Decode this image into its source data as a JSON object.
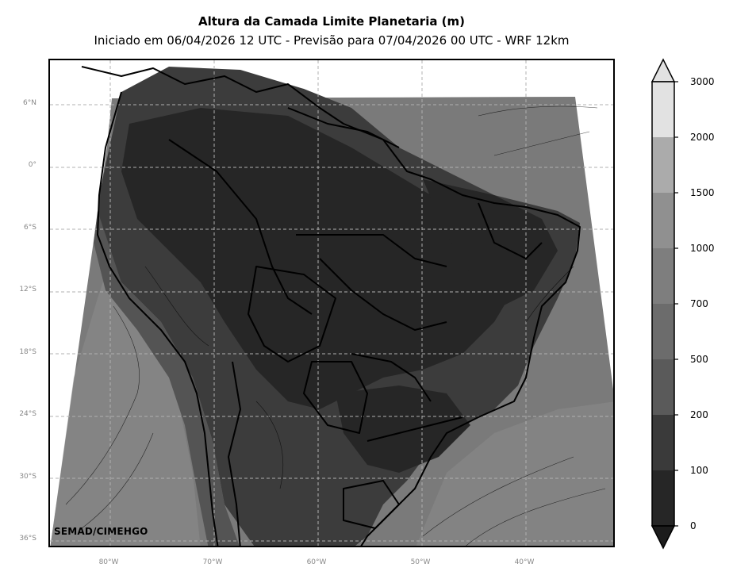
{
  "title": "Altura da Camada Limite Planetaria (m)",
  "subtitle": "Iniciado em 06/04/2026 12 UTC - Previsão para 07/04/2026 00 UTC - WRF 12km",
  "credit": "SEMAD/CIMEHGO",
  "lat_labels": [
    "6°N",
    "0°",
    "6°S",
    "12°S",
    "18°S",
    "24°S",
    "30°S",
    "36°S"
  ],
  "lon_labels": [
    "80°W",
    "70°W",
    "60°W",
    "50°W",
    "40°W"
  ],
  "colorbar": {
    "levels": [
      "0",
      "100",
      "200",
      "500",
      "700",
      "1000",
      "1500",
      "2000",
      "3000"
    ],
    "colors": [
      "#1c1c1c",
      "#262626",
      "#3a3a3a",
      "#5a5a5a",
      "#6c6c6c",
      "#7e7e7e",
      "#909090",
      "#ababab",
      "#e2e2e2"
    ],
    "extend": "both"
  },
  "palette": {
    "ocean": "#7a7a7a",
    "ocean_light": "#8a8a8a",
    "land_dark": "#262626",
    "land_mid": "#3c3c3c",
    "andes": "#545454",
    "border": "#000000",
    "grid": "#b0b0b0"
  }
}
